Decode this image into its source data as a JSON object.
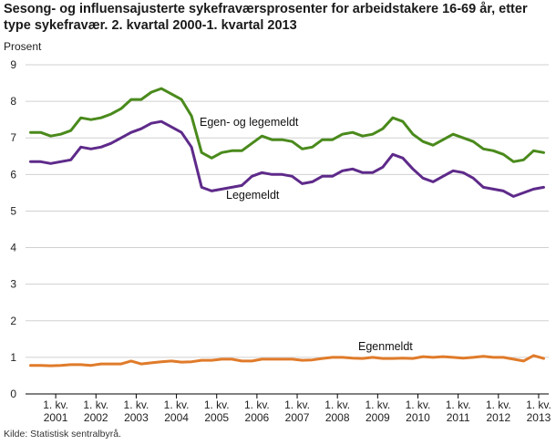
{
  "chart_data": {
    "type": "line",
    "title": "Sesong- og influensajusterte sykefraværsprosenter for arbeidstakere 16-69 år, etter type sykefravær. 2. kvartal 2000-1. kvartal 2013",
    "ylabel": "Prosent",
    "ylim": [
      0,
      9
    ],
    "yticks": [
      0,
      1,
      2,
      3,
      4,
      5,
      6,
      7,
      8,
      9
    ],
    "grid": "horizontal",
    "x_tick_prefix": "1. kv.",
    "x_tick_years": [
      "2001",
      "2002",
      "2003",
      "2004",
      "2005",
      "2006",
      "2007",
      "2008",
      "2009",
      "2010",
      "2011",
      "2012",
      "2013"
    ],
    "x_start": "2000K2",
    "series": [
      {
        "name": "Egen- og legemeldt",
        "color": "#4a8a1c",
        "values": [
          7.15,
          7.15,
          7.05,
          7.1,
          7.2,
          7.55,
          7.5,
          7.55,
          7.65,
          7.8,
          8.05,
          8.05,
          8.25,
          8.35,
          8.2,
          8.05,
          7.6,
          6.6,
          6.45,
          6.6,
          6.65,
          6.65,
          6.85,
          7.05,
          6.95,
          6.95,
          6.9,
          6.7,
          6.75,
          6.95,
          6.95,
          7.1,
          7.15,
          7.05,
          7.1,
          7.25,
          7.55,
          7.45,
          7.1,
          6.9,
          6.8,
          6.95,
          7.1,
          7.0,
          6.9,
          6.7,
          6.65,
          6.55,
          6.35,
          6.4,
          6.65,
          6.6
        ]
      },
      {
        "name": "Legemeldt",
        "color": "#5e2a8a",
        "values": [
          6.35,
          6.35,
          6.3,
          6.35,
          6.4,
          6.75,
          6.7,
          6.75,
          6.85,
          7.0,
          7.15,
          7.25,
          7.4,
          7.45,
          7.3,
          7.15,
          6.75,
          5.65,
          5.55,
          5.6,
          5.65,
          5.7,
          5.95,
          6.05,
          6.0,
          6.0,
          5.95,
          5.75,
          5.8,
          5.95,
          5.95,
          6.1,
          6.15,
          6.05,
          6.05,
          6.2,
          6.55,
          6.45,
          6.15,
          5.9,
          5.8,
          5.95,
          6.1,
          6.05,
          5.9,
          5.65,
          5.6,
          5.55,
          5.4,
          5.5,
          5.6,
          5.65
        ]
      },
      {
        "name": "Egenmeldt",
        "color": "#e07b2a",
        "values": [
          0.78,
          0.78,
          0.77,
          0.78,
          0.8,
          0.8,
          0.78,
          0.82,
          0.82,
          0.82,
          0.9,
          0.82,
          0.85,
          0.88,
          0.9,
          0.87,
          0.88,
          0.92,
          0.92,
          0.95,
          0.95,
          0.9,
          0.9,
          0.95,
          0.95,
          0.95,
          0.95,
          0.92,
          0.93,
          0.97,
          1.0,
          1.0,
          0.98,
          0.97,
          1.0,
          0.97,
          0.97,
          0.98,
          0.97,
          1.02,
          1.0,
          1.02,
          1.0,
          0.98,
          1.0,
          1.03,
          1.0,
          1.0,
          0.95,
          0.9,
          1.05,
          0.97
        ]
      }
    ],
    "annotations": [
      "Egen- og legemeldt",
      "Legemeldt",
      "Egenmeldt"
    ]
  },
  "source": "Kilde: Statistisk sentralbyrå."
}
